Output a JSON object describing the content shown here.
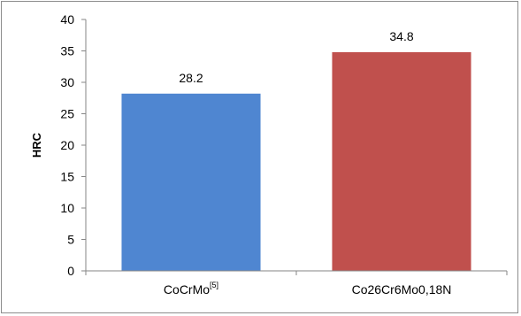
{
  "chart_data": {
    "type": "bar",
    "categories": [
      "CoCrMo",
      "Co26Cr6Mo0,18N"
    ],
    "category_superscripts": [
      "[5]",
      ""
    ],
    "values": [
      28.2,
      34.8
    ],
    "data_labels": [
      "28.2",
      "34.8"
    ],
    "colors": [
      "#4f86d1",
      "#c0504d"
    ],
    "title": "",
    "xlabel": "",
    "ylabel": "HRC",
    "ylim": [
      0,
      40
    ],
    "yticks": [
      0,
      5,
      10,
      15,
      20,
      25,
      30,
      35,
      40
    ],
    "grid": false,
    "legend": "none"
  }
}
